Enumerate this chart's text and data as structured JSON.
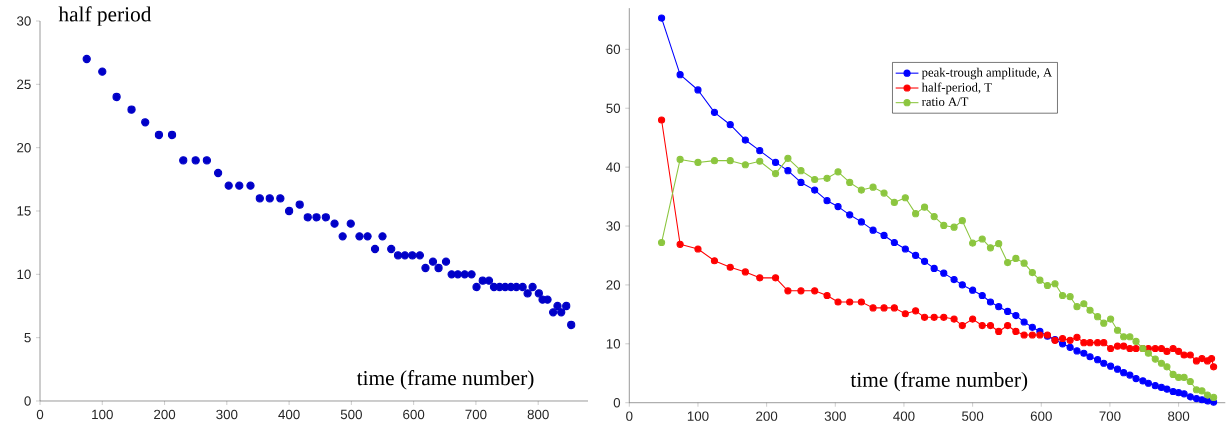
{
  "chart_data": [
    {
      "type": "scatter",
      "title": "half period",
      "xlabel": "time (frame number)",
      "color": "#0000c8",
      "marker": "circle",
      "x": [
        75,
        100,
        123,
        147,
        169,
        191,
        212,
        230,
        250,
        268,
        286,
        303,
        320,
        338,
        353,
        369,
        386,
        400,
        417,
        430,
        444,
        459,
        473,
        486,
        499,
        513,
        526,
        538,
        550,
        564,
        575,
        586,
        598,
        610,
        619,
        631,
        640,
        652,
        661,
        671,
        682,
        693,
        701,
        711,
        721,
        729,
        738,
        747,
        756,
        765,
        775,
        783,
        791,
        801,
        807,
        815,
        824,
        831,
        837,
        845,
        853
      ],
      "values": [
        27,
        26,
        24,
        23,
        22,
        21,
        21,
        19,
        19,
        19,
        18,
        17,
        17,
        17,
        16,
        16,
        16,
        15,
        15.5,
        14.5,
        14.5,
        14.5,
        14,
        13,
        14,
        13,
        13,
        12,
        13,
        12,
        11.5,
        11.5,
        11.5,
        11.5,
        10.5,
        11,
        10.5,
        11,
        10,
        10,
        10,
        10,
        9,
        9.5,
        9.5,
        9,
        9,
        9,
        9,
        9,
        9,
        8.5,
        9,
        8.5,
        8,
        8,
        7,
        7.5,
        7,
        7.5,
        6
      ],
      "xlim": [
        0,
        880
      ],
      "ylim": [
        0,
        30
      ],
      "xticks": [
        0,
        100,
        200,
        300,
        400,
        500,
        600,
        700,
        800
      ],
      "yticks": [
        0,
        5,
        10,
        15,
        20,
        25,
        30
      ]
    },
    {
      "type": "line",
      "xlabel": "time (frame number)",
      "marker": "circle",
      "line_style": "solid",
      "legend": "top",
      "xlim": [
        0,
        868
      ],
      "ylim": [
        0,
        67
      ],
      "xticks": [
        0,
        100,
        200,
        300,
        400,
        500,
        600,
        700,
        800
      ],
      "yticks": [
        0,
        10,
        20,
        30,
        40,
        50,
        60
      ],
      "series": [
        {
          "name": "peak-trough amplitude, A",
          "color": "#0000ff",
          "x": [
            47,
            74,
            100,
            124,
            147,
            169,
            190,
            213,
            231,
            250,
            270,
            288,
            304,
            321,
            338,
            355,
            371,
            386,
            402,
            417,
            430,
            444,
            458,
            473,
            485,
            500,
            514,
            526,
            538,
            551,
            563,
            575,
            587,
            598,
            609,
            620,
            631,
            642,
            652,
            662,
            671,
            682,
            691,
            701,
            711,
            720,
            729,
            738,
            748,
            756,
            766,
            775,
            783,
            792,
            800,
            808,
            817,
            826,
            834,
            842,
            851
          ],
          "values": [
            65.3,
            55.7,
            53.1,
            49.3,
            47.2,
            44.6,
            42.8,
            40.8,
            39.4,
            37.4,
            36.1,
            34.3,
            33.3,
            31.9,
            30.7,
            29.3,
            28.4,
            27.2,
            26.1,
            25.0,
            24.0,
            22.8,
            22.0,
            20.9,
            20.0,
            19.1,
            18.2,
            17.1,
            16.3,
            15.5,
            14.8,
            13.7,
            12.8,
            12.1,
            11.3,
            10.7,
            10.0,
            9.4,
            8.8,
            8.4,
            7.8,
            7.3,
            6.7,
            6.2,
            5.7,
            5.1,
            4.7,
            4.1,
            3.7,
            3.3,
            2.9,
            2.6,
            2.3,
            1.9,
            1.7,
            1.5,
            1.0,
            0.7,
            0.5,
            0.3,
            0.1
          ]
        },
        {
          "name": "half-period, T",
          "color": "#ff0000",
          "x": [
            47,
            74,
            100,
            124,
            147,
            169,
            190,
            213,
            231,
            250,
            270,
            288,
            304,
            321,
            338,
            355,
            371,
            386,
            402,
            417,
            430,
            444,
            458,
            473,
            485,
            500,
            514,
            526,
            538,
            551,
            563,
            575,
            587,
            598,
            609,
            620,
            631,
            642,
            652,
            662,
            671,
            682,
            691,
            701,
            711,
            720,
            729,
            738,
            748,
            756,
            766,
            775,
            783,
            792,
            800,
            808,
            817,
            826,
            834,
            842,
            848,
            851
          ],
          "values": [
            48,
            26.9,
            26.1,
            24.1,
            23.0,
            22.2,
            21.2,
            21.2,
            19.0,
            19.0,
            19.0,
            18.2,
            17.1,
            17.1,
            17.1,
            16.1,
            16.1,
            16.1,
            15.1,
            15.6,
            14.5,
            14.5,
            14.5,
            14.2,
            13.1,
            14.2,
            13.1,
            13.1,
            12.1,
            13.1,
            12.1,
            11.5,
            11.5,
            11.5,
            11.5,
            10.6,
            10.9,
            10.6,
            11.1,
            10.2,
            10.2,
            10.2,
            10.2,
            9.2,
            9.6,
            9.6,
            9.2,
            9.2,
            9.2,
            9.2,
            9.2,
            9.2,
            8.7,
            9.2,
            8.7,
            8.1,
            8.1,
            7.1,
            7.5,
            7.1,
            7.5,
            6.1
          ]
        },
        {
          "name": "ratio A/T",
          "color": "#8cc63f",
          "x": [
            47,
            74,
            100,
            124,
            147,
            169,
            190,
            213,
            231,
            250,
            270,
            288,
            304,
            321,
            338,
            355,
            371,
            386,
            402,
            417,
            430,
            444,
            458,
            473,
            485,
            500,
            514,
            526,
            538,
            551,
            563,
            575,
            587,
            598,
            609,
            620,
            631,
            642,
            652,
            662,
            671,
            682,
            691,
            701,
            711,
            720,
            729,
            738,
            748,
            756,
            766,
            775,
            783,
            792,
            800,
            808,
            817,
            826,
            834,
            842,
            851
          ],
          "values": [
            27.2,
            41.3,
            40.8,
            41.1,
            41.1,
            40.4,
            41.0,
            38.9,
            41.5,
            39.4,
            37.9,
            38.1,
            39.2,
            37.4,
            36.1,
            36.6,
            35.6,
            34.0,
            34.8,
            32.1,
            33.2,
            31.6,
            30.1,
            29.8,
            30.9,
            27.1,
            27.8,
            26.3,
            27.0,
            23.8,
            24.5,
            23.7,
            22.1,
            20.8,
            19.9,
            20.2,
            18.2,
            18.0,
            16.3,
            16.8,
            15.7,
            14.6,
            13.5,
            14.2,
            12.3,
            11.2,
            11.2,
            10.4,
            9.2,
            8.4,
            7.4,
            6.7,
            6.1,
            4.8,
            4.3,
            4.3,
            3.6,
            2.2,
            2.0,
            1.3,
            0.9
          ]
        }
      ]
    }
  ]
}
